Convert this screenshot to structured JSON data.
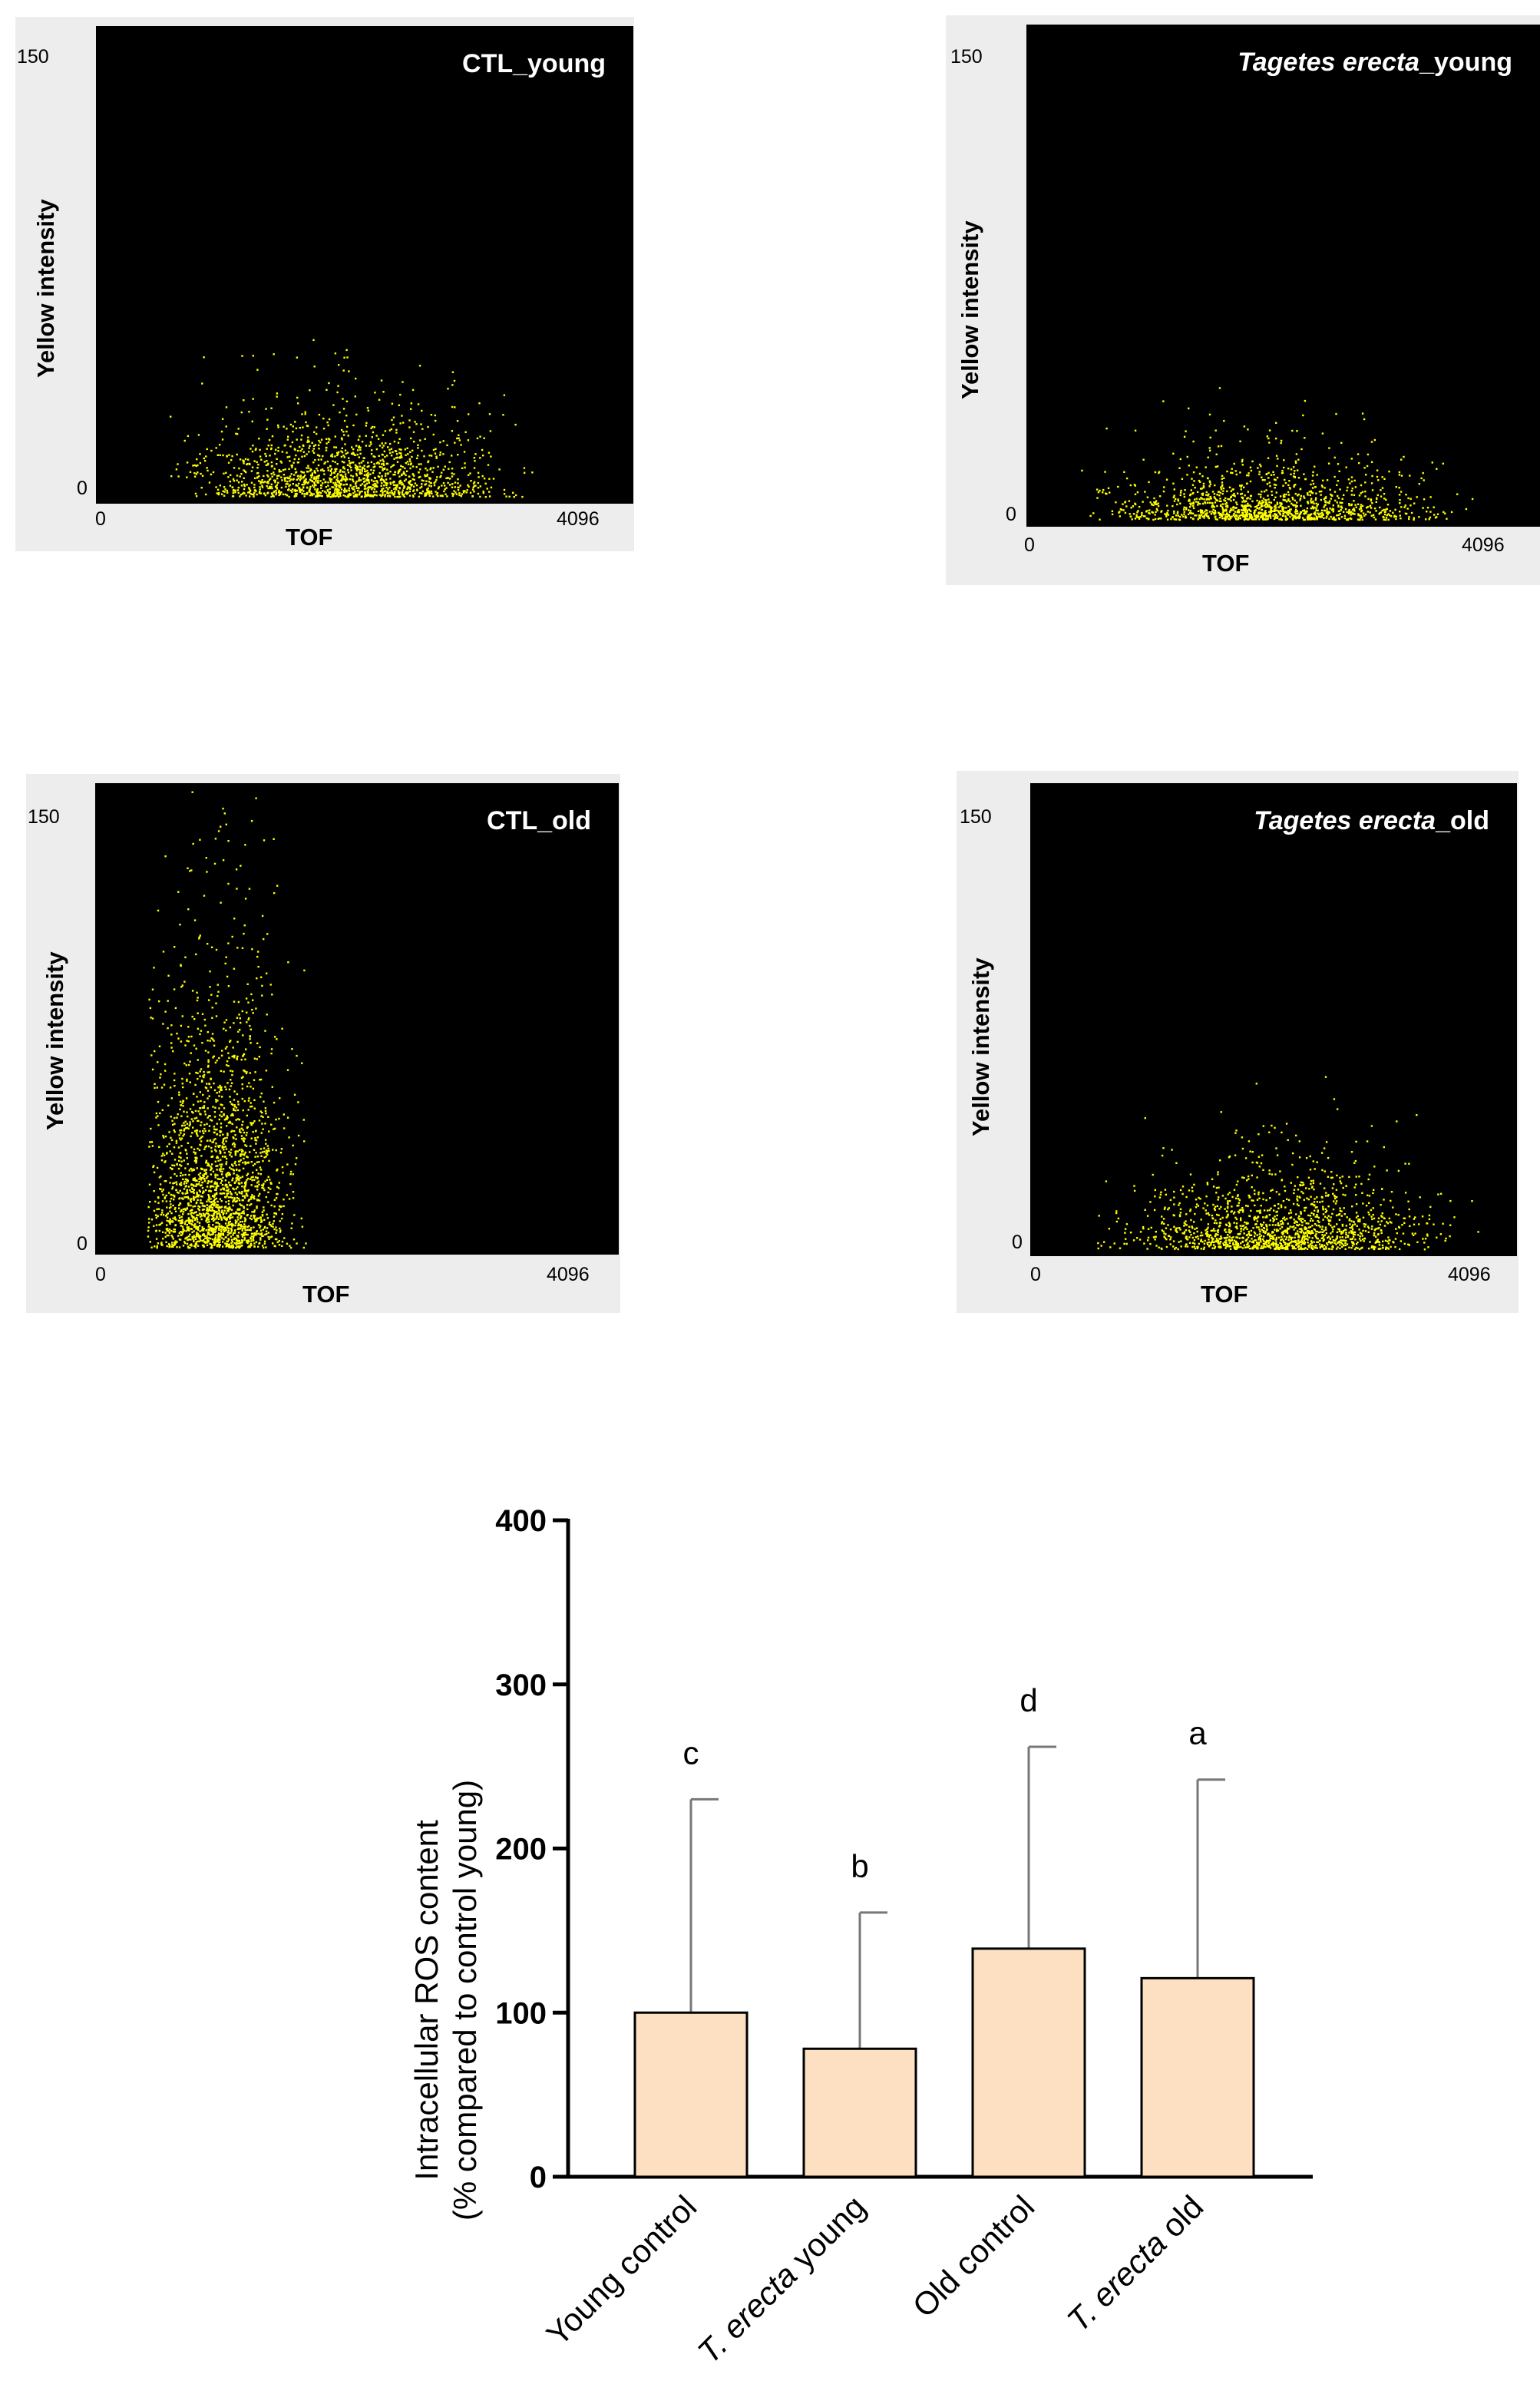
{
  "chart_data": [
    {
      "type": "scatter",
      "title": "CTL_young",
      "ylabel": "Yellow intensity",
      "xlabel": "TOF",
      "x_ticks": [
        "0",
        "4096"
      ],
      "y_ticks": [
        "0",
        "150"
      ],
      "xlim": [
        0,
        4096
      ],
      "ylim": [
        0,
        150
      ],
      "point_color": "#ffff00",
      "distribution": {
        "x_center": 1900,
        "x_spread": 900,
        "y_decay": 9,
        "n": 1500
      }
    },
    {
      "type": "scatter",
      "title": "Tagetes erecta_young",
      "title_main": "Tagetes erecta",
      "title_suffix": "_young",
      "ylabel": "Yellow intensity",
      "xlabel": "TOF",
      "x_ticks": [
        "0",
        "4096"
      ],
      "y_ticks": [
        "0",
        "150"
      ],
      "xlim": [
        0,
        4096
      ],
      "ylim": [
        0,
        150
      ],
      "point_color": "#ffff00",
      "distribution": {
        "x_center": 1900,
        "x_spread": 1000,
        "y_decay": 6,
        "n": 1300
      }
    },
    {
      "type": "scatter",
      "title": "CTL_old",
      "ylabel": "Yellow intensity",
      "xlabel": "TOF",
      "x_ticks": [
        "0",
        "4096"
      ],
      "y_ticks": [
        "0",
        "150"
      ],
      "xlim": [
        0,
        4096
      ],
      "ylim": [
        0,
        150
      ],
      "point_color": "#ffff00",
      "distribution": {
        "x_center": 900,
        "x_spread": 450,
        "y_decay": 28,
        "n": 2200
      }
    },
    {
      "type": "scatter",
      "title": "Tagetes erecta_old",
      "title_main": "Tagetes erecta",
      "title_suffix": "_old",
      "ylabel": "Yellow intensity",
      "xlabel": "TOF",
      "x_ticks": [
        "0",
        "4096"
      ],
      "y_ticks": [
        "0",
        "150"
      ],
      "xlim": [
        0,
        4096
      ],
      "ylim": [
        0,
        150
      ],
      "point_color": "#ffff00",
      "distribution": {
        "x_center": 2100,
        "x_spread": 1000,
        "y_decay": 9,
        "n": 1500
      }
    },
    {
      "type": "bar",
      "categories": [
        "Young control",
        "T. erecta young",
        "Old control",
        "T. erecta old"
      ],
      "category_parts": [
        [
          "",
          "Young control"
        ],
        [
          "T. erecta",
          " young"
        ],
        [
          "",
          "Old control"
        ],
        [
          "T. erecta",
          " old"
        ]
      ],
      "values": [
        100,
        78,
        139,
        121
      ],
      "error_upper": [
        230,
        161,
        262,
        242
      ],
      "significance": [
        "c",
        "b",
        "d",
        "a"
      ],
      "ylabel_line1": "Intracellular ROS content",
      "ylabel_line2": "(% compared to control young)",
      "ylim": [
        0,
        400
      ],
      "y_ticks": [
        0,
        100,
        200,
        300,
        400
      ],
      "bar_color": "#fde0c1",
      "edge_color": "#000000"
    }
  ]
}
